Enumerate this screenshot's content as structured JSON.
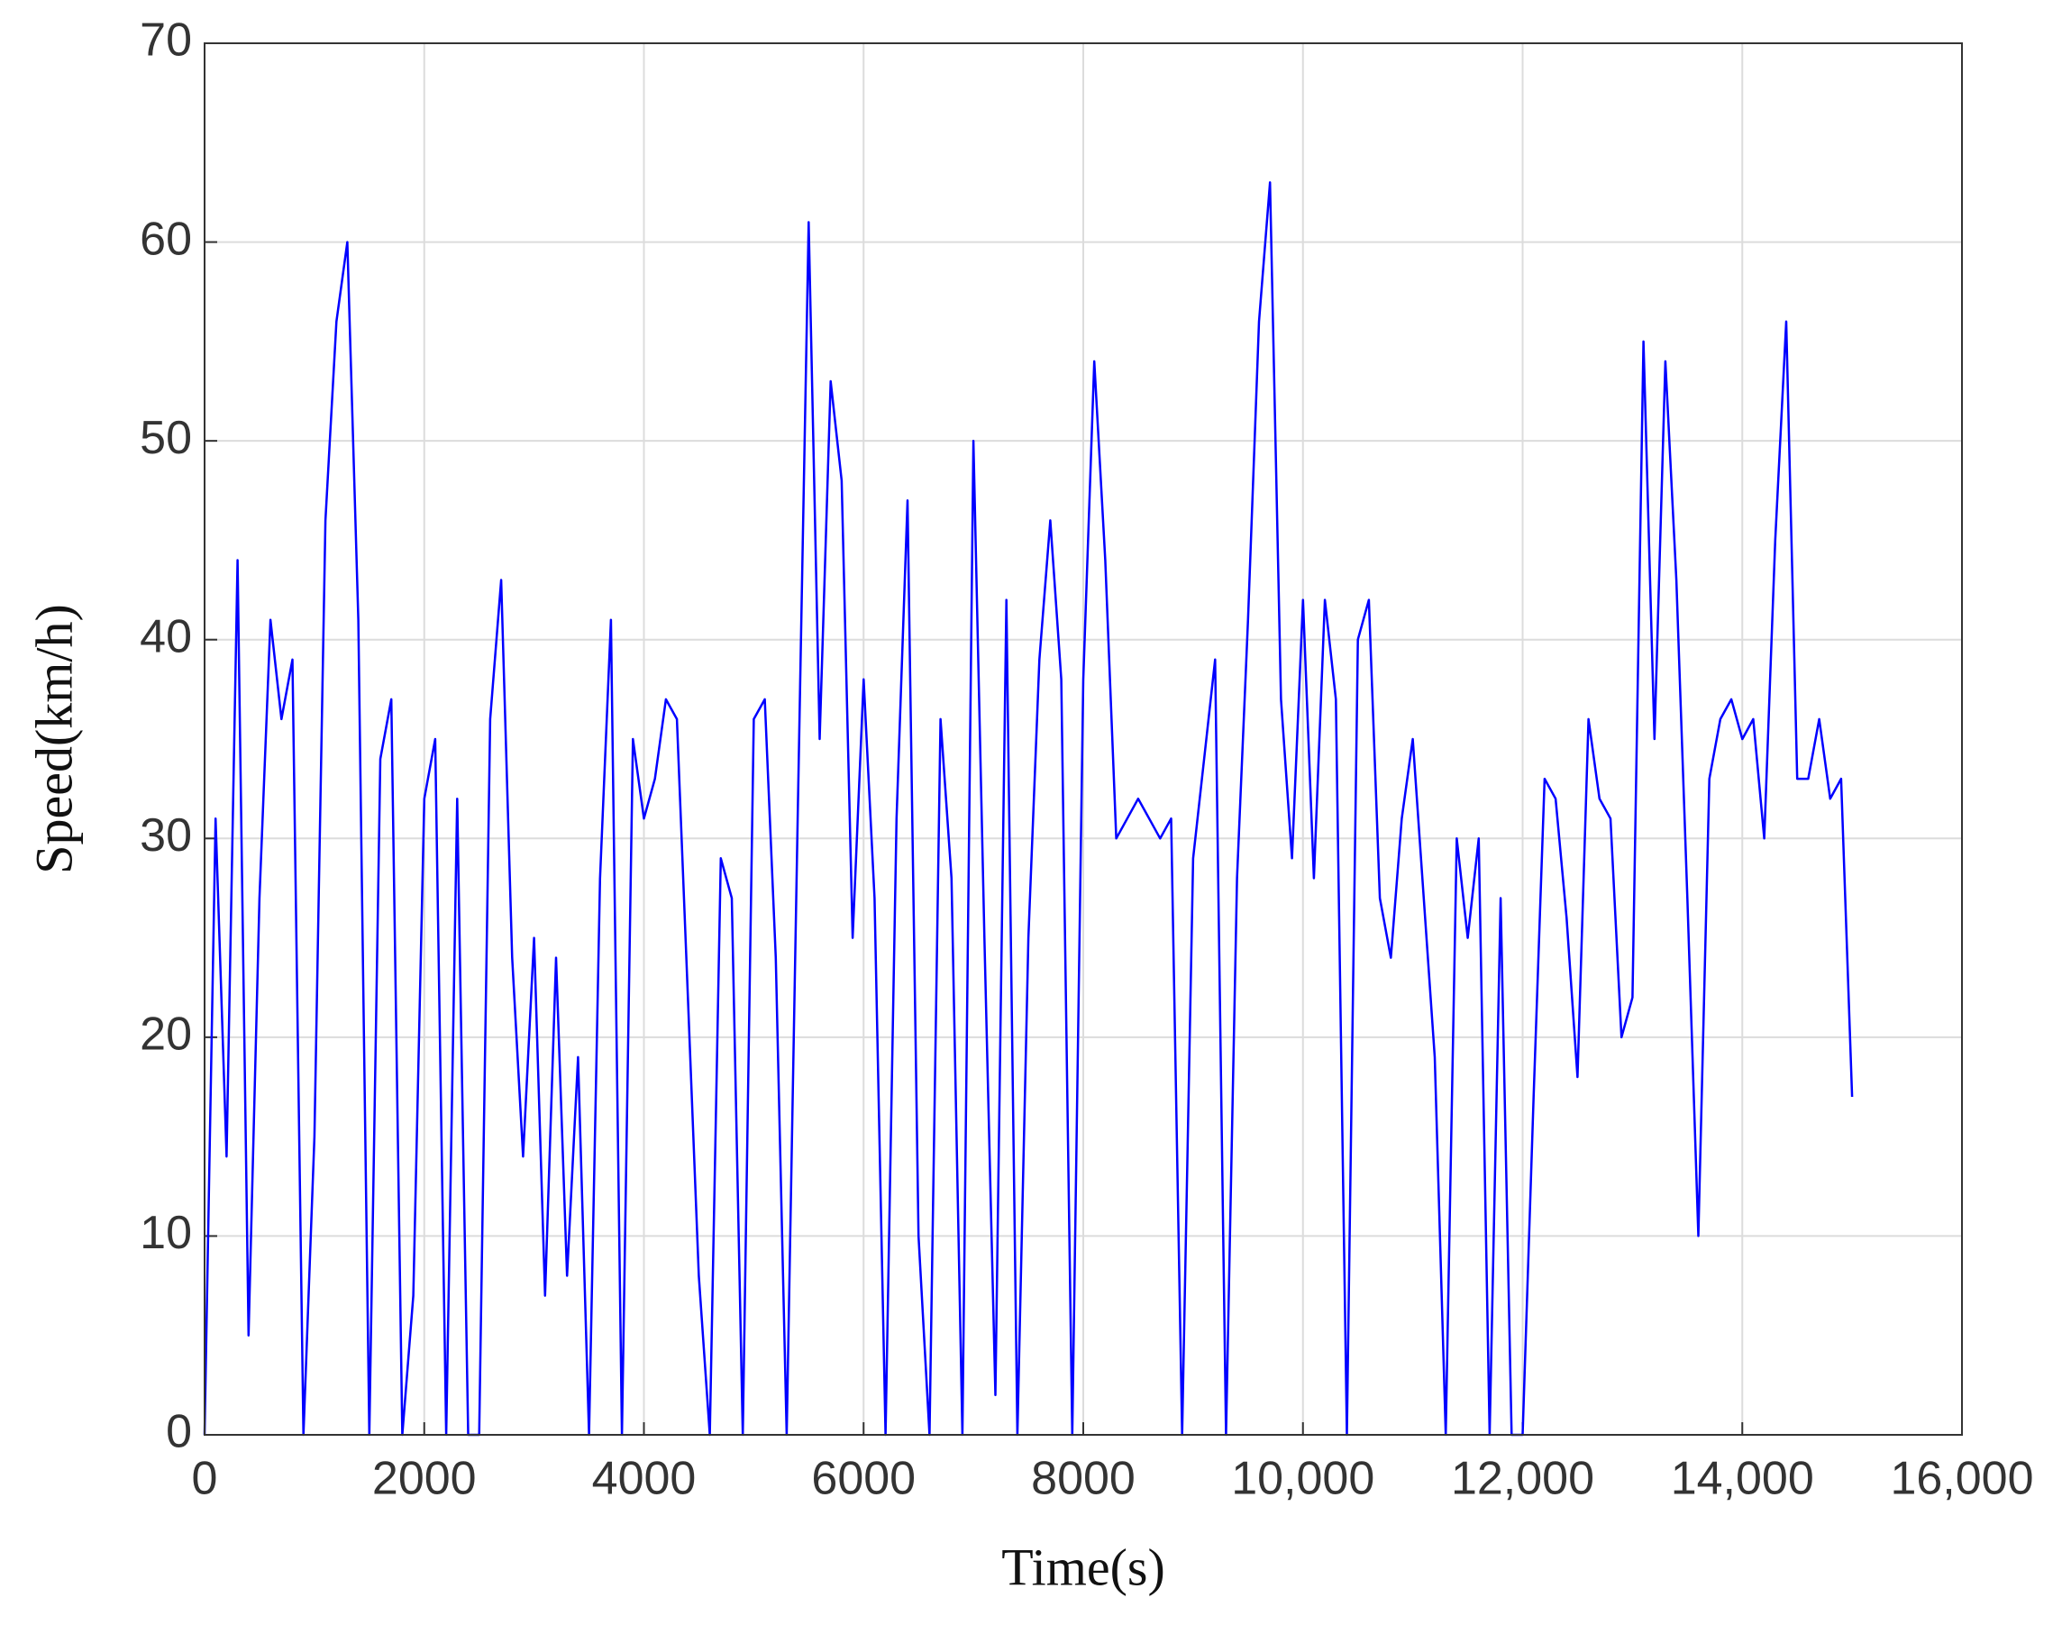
{
  "chart_data": {
    "type": "line",
    "xlabel": "Time(s)",
    "ylabel": "Speed(km/h)",
    "color": "#0000ff",
    "x": [
      0,
      100,
      200,
      300,
      400,
      500,
      600,
      700,
      800,
      900,
      1000,
      1100,
      1200,
      1300,
      1400,
      1500,
      1600,
      1700,
      1800,
      1900,
      2000,
      2100,
      2200,
      2300,
      2400,
      2500,
      2600,
      2700,
      2800,
      2900,
      3000,
      3100,
      3200,
      3300,
      3400,
      3500,
      3600,
      3700,
      3800,
      3900,
      4000,
      4100,
      4200,
      4300,
      4400,
      4500,
      4600,
      4700,
      4800,
      4900,
      5000,
      5100,
      5200,
      5300,
      5400,
      5500,
      5600,
      5700,
      5800,
      5900,
      6000,
      6100,
      6200,
      6300,
      6400,
      6500,
      6600,
      6700,
      6800,
      6900,
      7000,
      7100,
      7200,
      7300,
      7400,
      7500,
      7600,
      7700,
      7800,
      7900,
      8000,
      8100,
      8200,
      8300,
      8400,
      8500,
      8600,
      8700,
      8800,
      8900,
      9000,
      9100,
      9200,
      9300,
      9400,
      9500,
      9600,
      9700,
      9800,
      9900,
      10000,
      10100,
      10200,
      10300,
      10400,
      10500,
      10600,
      10700,
      10800,
      10900,
      11000,
      11100,
      11200,
      11300,
      11400,
      11500,
      11600,
      11700,
      11800,
      11900,
      12000,
      12100,
      12200,
      12300,
      12400,
      12500,
      12600,
      12700,
      12800,
      12900,
      13000,
      13100,
      13200,
      13300,
      13400,
      13500,
      13600,
      13700,
      13800,
      13900,
      14000,
      14100,
      14200,
      14300,
      14400,
      14500,
      14600,
      14700,
      14800,
      14900,
      15000
    ],
    "values": [
      0,
      31,
      14,
      44,
      5,
      27,
      41,
      36,
      39,
      0,
      15,
      46,
      56,
      60,
      41,
      0,
      34,
      37,
      0,
      7,
      32,
      35,
      0,
      32,
      0,
      0,
      36,
      43,
      24,
      14,
      25,
      7,
      24,
      8,
      19,
      0,
      28,
      41,
      0,
      35,
      31,
      33,
      37,
      36,
      22,
      8,
      0,
      29,
      27,
      0,
      36,
      37,
      24,
      0,
      31,
      61,
      35,
      53,
      48,
      25,
      38,
      27,
      0,
      31,
      47,
      10,
      0,
      36,
      28,
      0,
      50,
      25,
      2,
      42,
      0,
      25,
      39,
      46,
      38,
      0,
      38,
      54,
      44,
      30,
      31,
      32,
      31,
      30,
      31,
      0,
      29,
      34,
      39,
      0,
      28,
      41,
      56,
      63,
      37,
      29,
      42,
      28,
      42,
      37,
      0,
      40,
      42,
      27,
      24,
      31,
      35,
      27,
      19,
      0,
      30,
      25,
      30,
      0,
      27,
      0,
      0,
      17,
      33,
      32,
      26,
      18,
      36,
      32,
      31,
      20,
      22,
      55,
      35,
      54,
      43,
      27,
      10,
      33,
      36,
      37,
      35,
      36,
      30,
      45,
      56,
      33,
      33,
      36,
      32,
      33,
      17
    ],
    "xlim": [
      0,
      16000
    ],
    "xticks": [
      0,
      2000,
      4000,
      6000,
      8000,
      {
        "value": 10000,
        "label": "10,000"
      },
      {
        "value": 12000,
        "label": "12,000"
      },
      {
        "value": 14000,
        "label": "14,000"
      },
      {
        "value": 16000,
        "label": "16,000"
      }
    ],
    "ylim": [
      0,
      70
    ],
    "yticks": [
      0,
      10,
      20,
      30,
      40,
      50,
      60,
      70
    ],
    "grid": true
  }
}
